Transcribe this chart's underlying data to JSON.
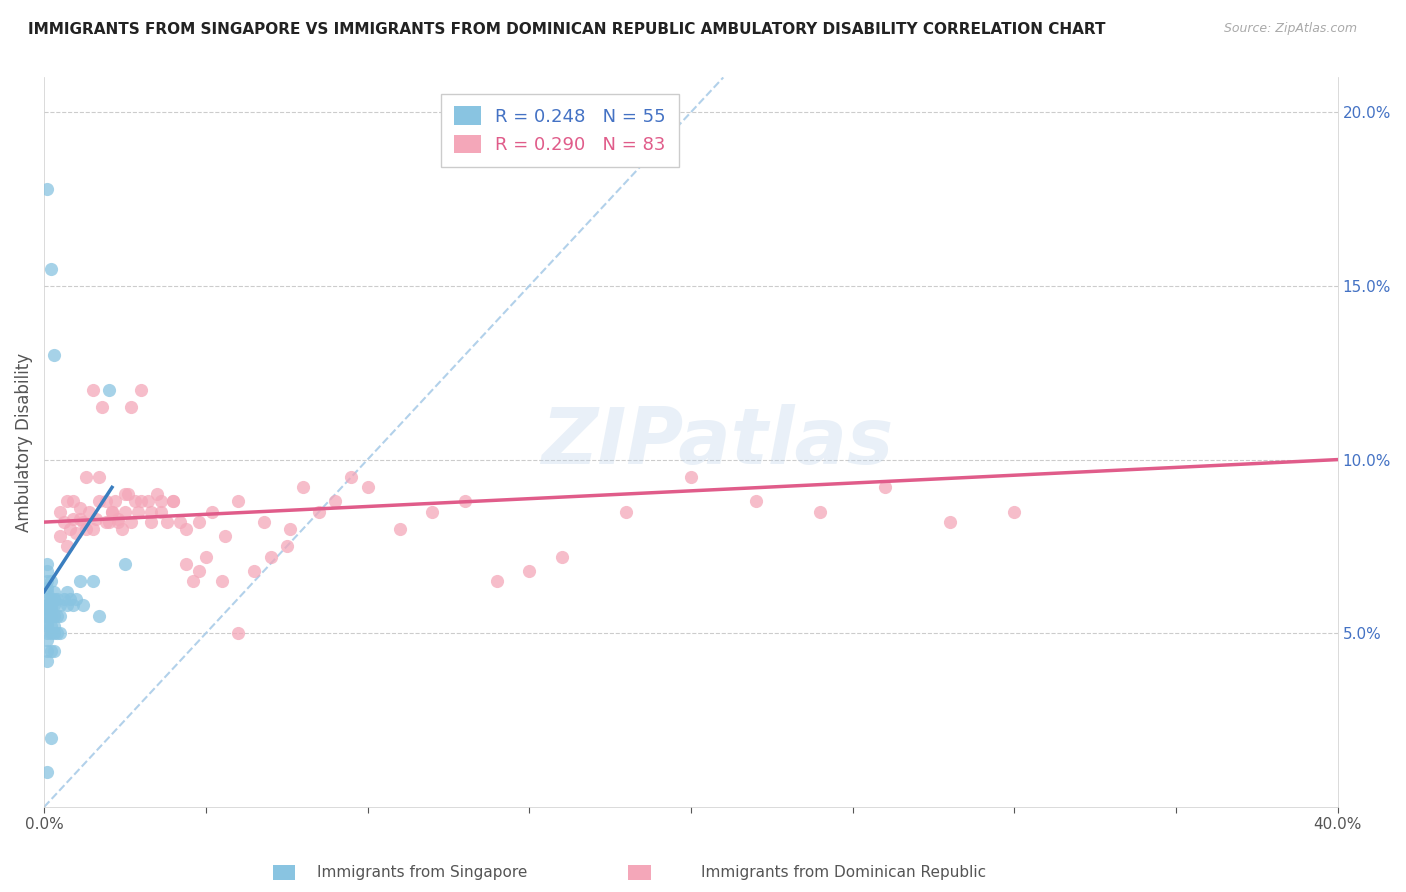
{
  "title": "IMMIGRANTS FROM SINGAPORE VS IMMIGRANTS FROM DOMINICAN REPUBLIC AMBULATORY DISABILITY CORRELATION CHART",
  "source": "Source: ZipAtlas.com",
  "ylabel": "Ambulatory Disability",
  "legend_singapore_R": "0.248",
  "legend_singapore_N": "55",
  "legend_dominican_R": "0.290",
  "legend_dominican_N": "83",
  "color_singapore": "#89c4e1",
  "color_dominican": "#f4a7b9",
  "color_singapore_line": "#3a7ebf",
  "color_dominican_line": "#e05c8a",
  "color_dashed": "#aacce8",
  "watermark": "ZIPatlas",
  "sg_x": [
    0.001,
    0.001,
    0.001,
    0.001,
    0.001,
    0.001,
    0.001,
    0.001,
    0.001,
    0.001,
    0.001,
    0.001,
    0.001,
    0.001,
    0.001,
    0.001,
    0.001,
    0.002,
    0.002,
    0.002,
    0.002,
    0.002,
    0.002,
    0.002,
    0.002,
    0.003,
    0.003,
    0.003,
    0.003,
    0.003,
    0.003,
    0.003,
    0.004,
    0.004,
    0.004,
    0.005,
    0.005,
    0.005,
    0.006,
    0.007,
    0.007,
    0.008,
    0.009,
    0.01,
    0.011,
    0.012,
    0.015,
    0.017,
    0.02,
    0.025,
    0.001,
    0.002,
    0.003,
    0.001,
    0.002
  ],
  "sg_y": [
    0.065,
    0.068,
    0.07,
    0.062,
    0.058,
    0.055,
    0.06,
    0.052,
    0.05,
    0.048,
    0.053,
    0.057,
    0.045,
    0.042,
    0.055,
    0.058,
    0.063,
    0.065,
    0.06,
    0.055,
    0.058,
    0.05,
    0.045,
    0.052,
    0.057,
    0.06,
    0.055,
    0.05,
    0.045,
    0.052,
    0.058,
    0.062,
    0.055,
    0.05,
    0.06,
    0.055,
    0.05,
    0.058,
    0.06,
    0.058,
    0.062,
    0.06,
    0.058,
    0.06,
    0.065,
    0.058,
    0.065,
    0.055,
    0.12,
    0.07,
    0.178,
    0.155,
    0.13,
    0.01,
    0.02
  ],
  "dr_x": [
    0.005,
    0.006,
    0.007,
    0.008,
    0.009,
    0.01,
    0.011,
    0.012,
    0.013,
    0.014,
    0.015,
    0.016,
    0.017,
    0.018,
    0.019,
    0.02,
    0.021,
    0.022,
    0.023,
    0.024,
    0.025,
    0.026,
    0.027,
    0.028,
    0.029,
    0.03,
    0.032,
    0.033,
    0.035,
    0.036,
    0.038,
    0.04,
    0.042,
    0.044,
    0.046,
    0.048,
    0.05,
    0.055,
    0.06,
    0.065,
    0.07,
    0.075,
    0.08,
    0.085,
    0.09,
    0.095,
    0.1,
    0.11,
    0.12,
    0.13,
    0.14,
    0.15,
    0.16,
    0.18,
    0.2,
    0.22,
    0.24,
    0.26,
    0.28,
    0.3,
    0.005,
    0.007,
    0.009,
    0.011,
    0.013,
    0.015,
    0.017,
    0.019,
    0.021,
    0.023,
    0.025,
    0.027,
    0.03,
    0.033,
    0.036,
    0.04,
    0.044,
    0.048,
    0.052,
    0.056,
    0.06,
    0.068,
    0.076
  ],
  "dr_y": [
    0.085,
    0.082,
    0.088,
    0.08,
    0.083,
    0.079,
    0.086,
    0.082,
    0.08,
    0.085,
    0.12,
    0.083,
    0.095,
    0.115,
    0.088,
    0.082,
    0.085,
    0.088,
    0.082,
    0.08,
    0.085,
    0.09,
    0.115,
    0.088,
    0.085,
    0.12,
    0.088,
    0.085,
    0.09,
    0.088,
    0.082,
    0.088,
    0.082,
    0.07,
    0.065,
    0.068,
    0.072,
    0.065,
    0.05,
    0.068,
    0.072,
    0.075,
    0.092,
    0.085,
    0.088,
    0.095,
    0.092,
    0.08,
    0.085,
    0.088,
    0.065,
    0.068,
    0.072,
    0.085,
    0.095,
    0.088,
    0.085,
    0.092,
    0.082,
    0.085,
    0.078,
    0.075,
    0.088,
    0.083,
    0.095,
    0.08,
    0.088,
    0.082,
    0.085,
    0.083,
    0.09,
    0.082,
    0.088,
    0.082,
    0.085,
    0.088,
    0.08,
    0.082,
    0.085,
    0.078,
    0.088,
    0.082,
    0.08
  ],
  "sg_line_x": [
    0.0,
    0.021
  ],
  "sg_line_y": [
    0.062,
    0.092
  ],
  "dr_line_x": [
    0.0,
    0.4
  ],
  "dr_line_y": [
    0.082,
    0.1
  ],
  "diag_line_x": [
    0.0,
    0.21
  ],
  "diag_line_y": [
    0.0,
    0.21
  ],
  "xlim": [
    0.0,
    0.4
  ],
  "ylim": [
    0.0,
    0.21
  ],
  "yticks": [
    0.0,
    0.05,
    0.1,
    0.15,
    0.2
  ],
  "ytick_labels": [
    "",
    "5.0%",
    "10.0%",
    "15.0%",
    "20.0%"
  ],
  "xtick_labels_show": [
    "0.0%",
    "40.0%"
  ],
  "title_fontsize": 11,
  "source_text": "Source: ZipAtlas.com"
}
